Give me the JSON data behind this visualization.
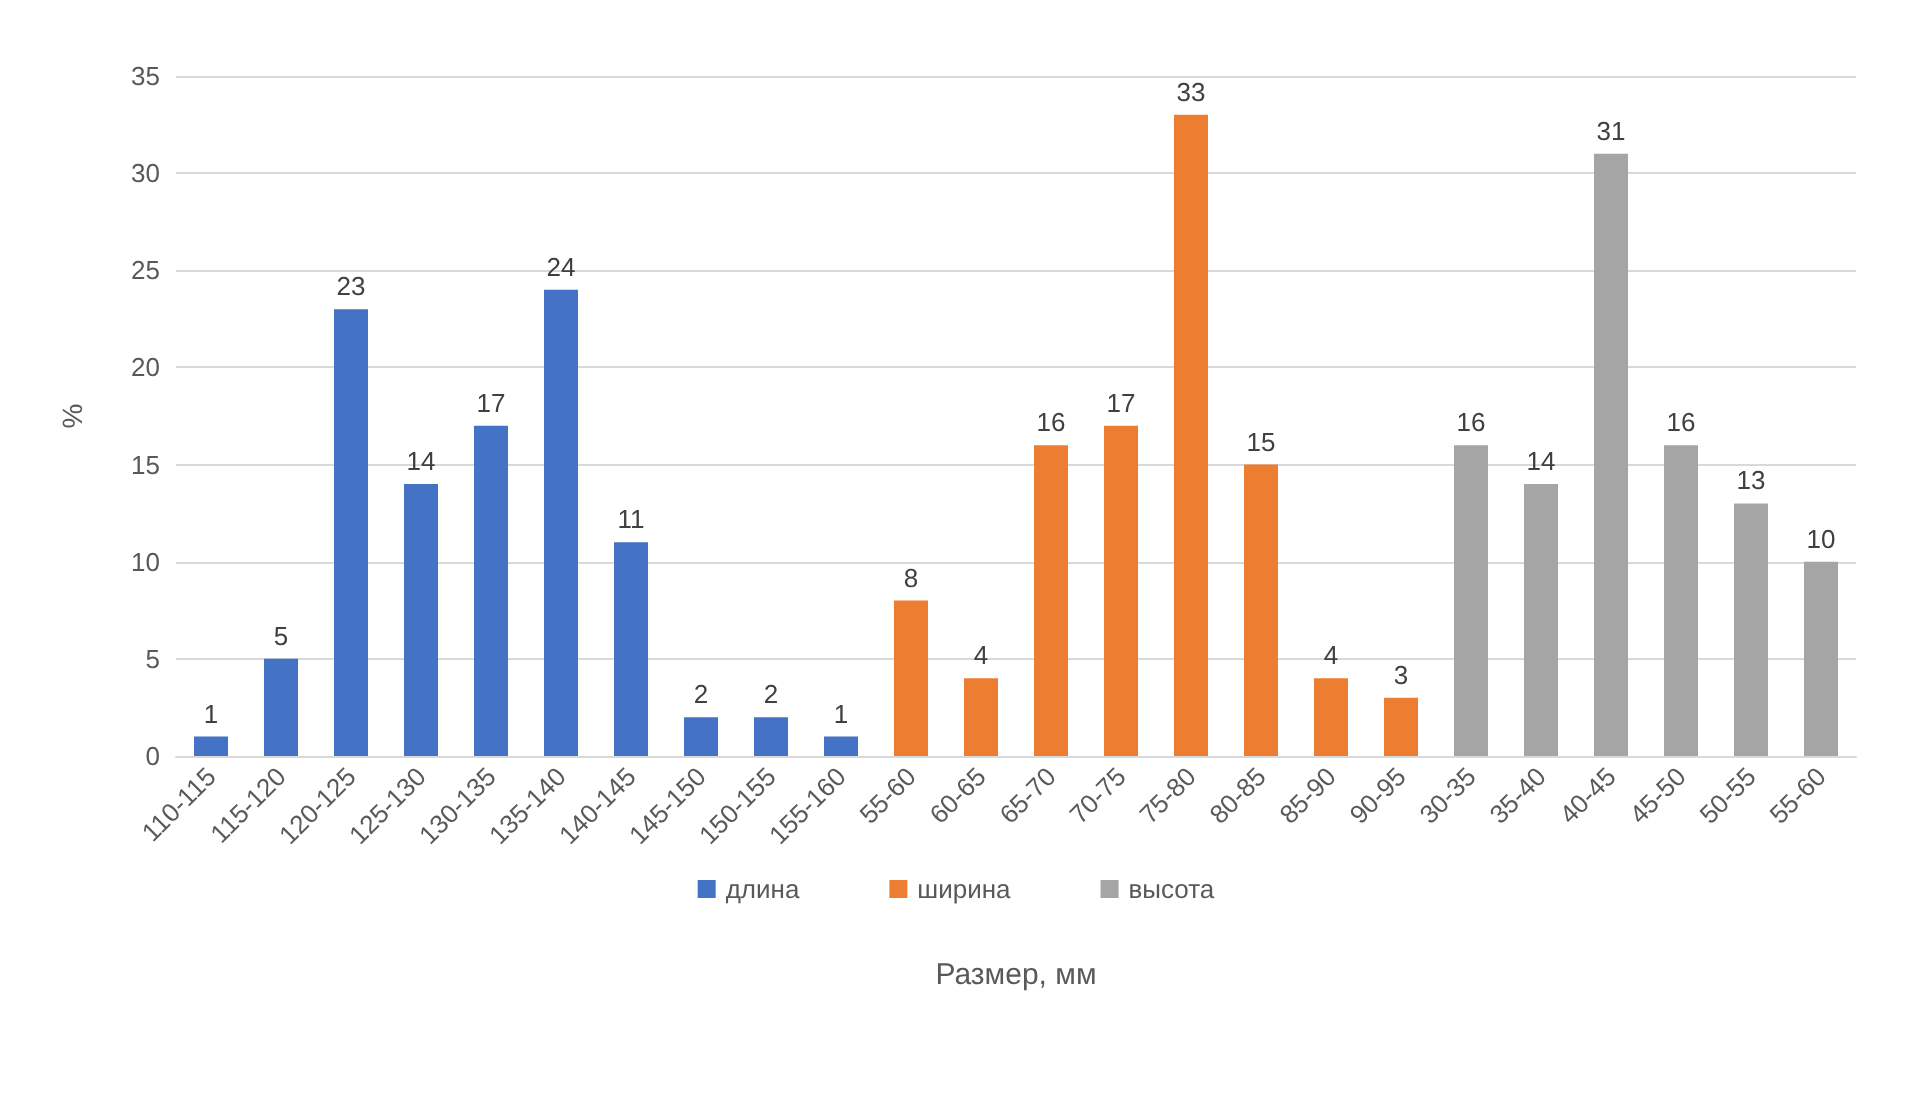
{
  "chart_data": {
    "type": "bar",
    "xlabel": "Размер, мм",
    "ylabel": "%",
    "categories": [
      "110-115",
      "115-120",
      "120-125",
      "125-130",
      "130-135",
      "135-140",
      "140-145",
      "145-150",
      "150-155",
      "155-160",
      "55-60",
      "60-65",
      "65-70",
      "70-75",
      "75-80",
      "80-85",
      "85-90",
      "90-95",
      "30-35",
      "35-40",
      "40-45",
      "45-50",
      "50-55",
      "55-60"
    ],
    "series": [
      {
        "name": "длина",
        "color": "#4472c4",
        "values": [
          1,
          5,
          23,
          14,
          17,
          24,
          11,
          2,
          2,
          1,
          null,
          null,
          null,
          null,
          null,
          null,
          null,
          null,
          null,
          null,
          null,
          null,
          null,
          null
        ]
      },
      {
        "name": "ширина",
        "color": "#ed7d31",
        "values": [
          null,
          null,
          null,
          null,
          null,
          null,
          null,
          null,
          null,
          null,
          8,
          4,
          16,
          17,
          33,
          15,
          4,
          3,
          null,
          null,
          null,
          null,
          null,
          null
        ]
      },
      {
        "name": "высота",
        "color": "#a5a5a5",
        "values": [
          null,
          null,
          null,
          null,
          null,
          null,
          null,
          null,
          null,
          null,
          null,
          null,
          null,
          null,
          null,
          null,
          null,
          null,
          16,
          14,
          31,
          16,
          13,
          10
        ]
      }
    ],
    "ylim": [
      0,
      35
    ],
    "yticks": [
      0,
      5,
      10,
      15,
      20,
      25,
      30,
      35
    ],
    "grid": "y",
    "legend": "bottom",
    "data_labels": true
  }
}
